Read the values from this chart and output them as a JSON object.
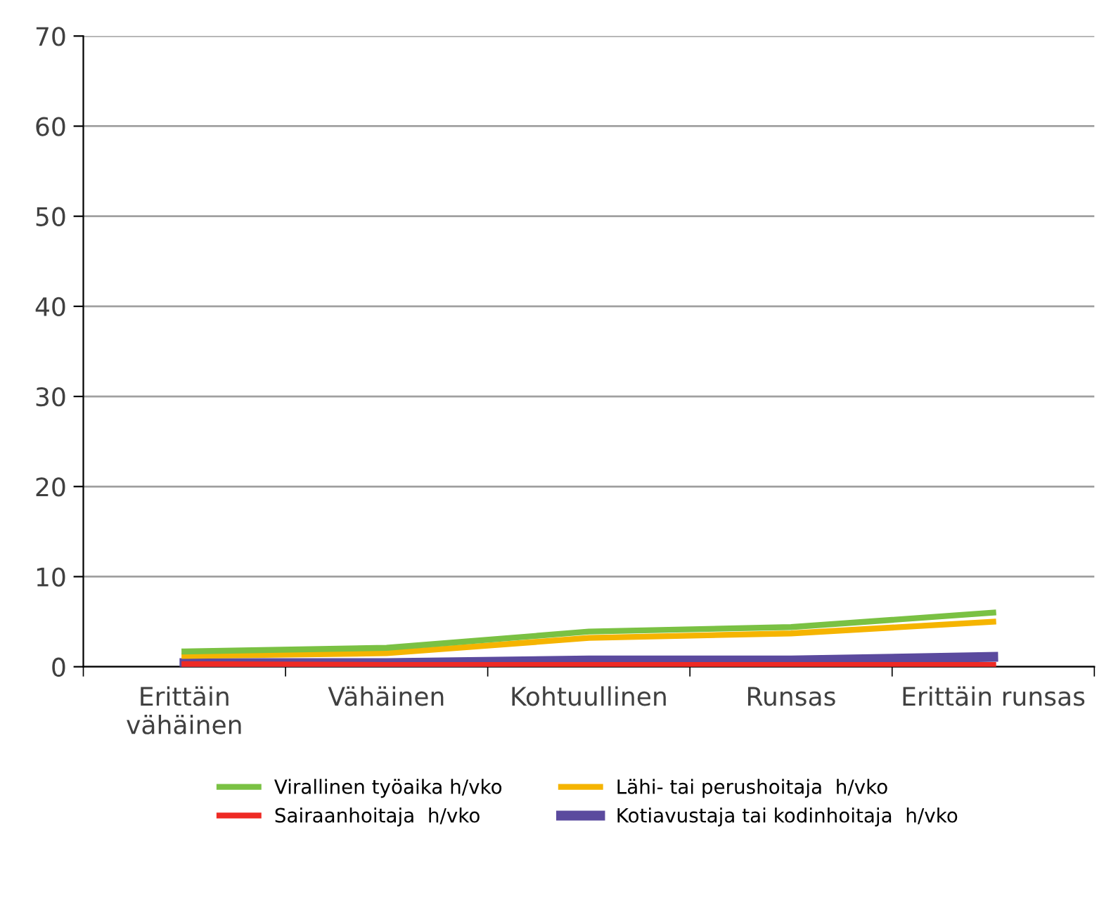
{
  "chart_data": {
    "type": "line",
    "categories": [
      "Erittäin\nvähäinen",
      "Vähäinen",
      "Kohtuullinen",
      "Runsas",
      "Erittäin runsas"
    ],
    "series": [
      {
        "name": "Virallinen työaika h/vko",
        "color": "#7ac143",
        "values": [
          1.7,
          2.1,
          3.9,
          4.4,
          6.0
        ]
      },
      {
        "name": "Lähi- tai perushoitaja  h/vko",
        "color": "#f5b400",
        "values": [
          1.2,
          1.5,
          3.2,
          3.7,
          5.0
        ]
      },
      {
        "name": "Sairaanhoitaja  h/vko",
        "color": "#ee2a24",
        "values": [
          0.3,
          0.2,
          0.2,
          0.2,
          0.2
        ]
      },
      {
        "name": "Kotiavustaja tai kodinhoitaja  h/vko",
        "color": "#5b4a9e",
        "values": [
          0.4,
          0.4,
          0.7,
          0.7,
          1.1
        ]
      }
    ],
    "ylim": [
      0,
      70
    ],
    "yticks": [
      0,
      10,
      20,
      30,
      40,
      50,
      60,
      70
    ],
    "grid": "y",
    "legend": "bottom",
    "marker": "none",
    "line_style": "solid"
  }
}
